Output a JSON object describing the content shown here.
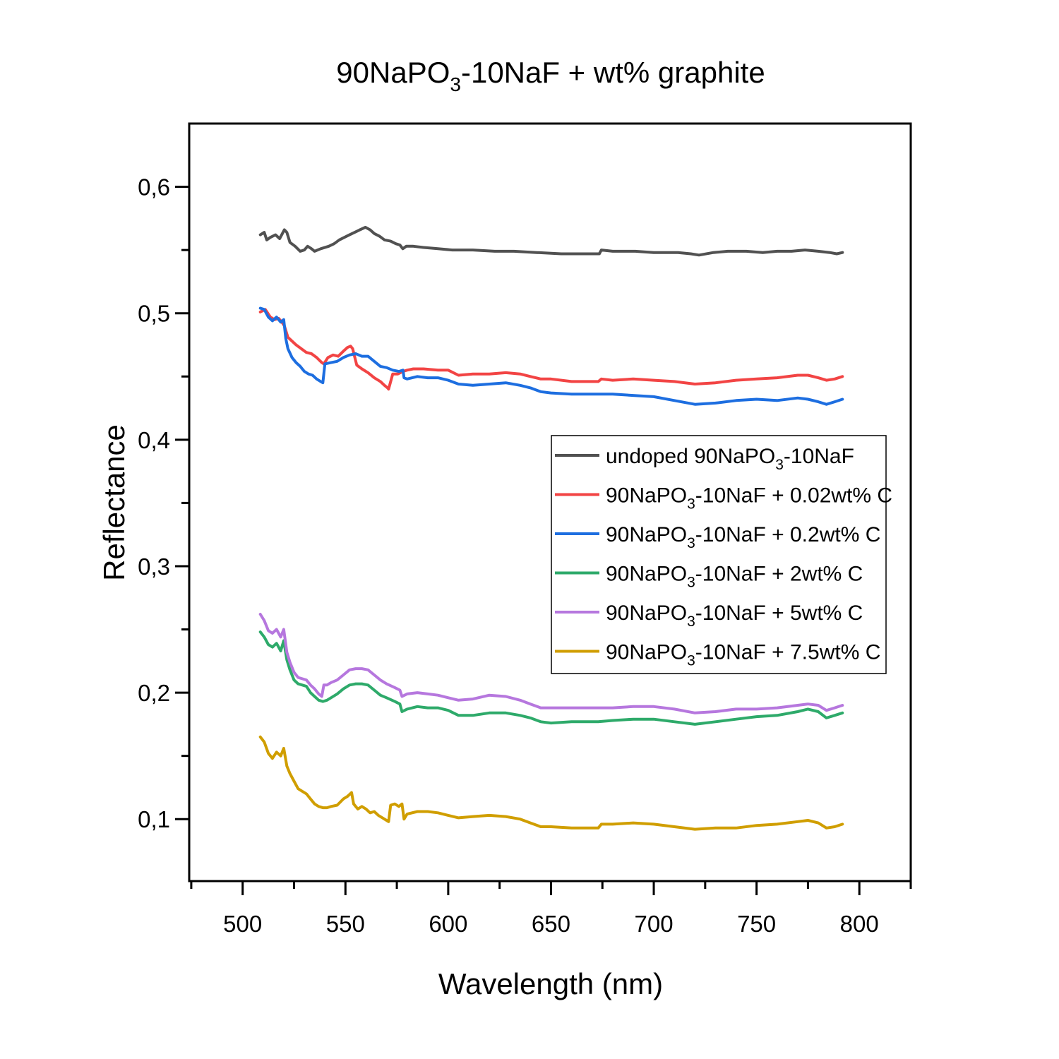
{
  "chart_data": {
    "type": "line",
    "title": {
      "prefix": "90NaPO",
      "subscript": "3",
      "suffix": "-10NaF + wt% graphite"
    },
    "xlabel": "Wavelength (nm)",
    "ylabel": "Reflectance",
    "xlim": [
      474,
      825
    ],
    "ylim": [
      0.051,
      0.65
    ],
    "x_ticks": [
      500,
      550,
      600,
      650,
      700,
      750,
      800
    ],
    "x_tick_labels": [
      "500",
      "550",
      "600",
      "650",
      "700",
      "750",
      "800"
    ],
    "x_minor_ticks": [
      475,
      525,
      575,
      625,
      675,
      725,
      775,
      825
    ],
    "y_ticks": [
      0.1,
      0.2,
      0.3,
      0.4,
      0.5,
      0.6
    ],
    "y_tick_labels": [
      "0,1",
      "0,2",
      "0,3",
      "0,4",
      "0,5",
      "0,6"
    ],
    "y_minor_ticks": [
      0.05,
      0.15,
      0.25,
      0.35,
      0.45,
      0.55
    ],
    "grid": false,
    "legend_position": "center-right",
    "series": [
      {
        "name": "undoped 90NaPO3-10NaF",
        "label": {
          "prefix": "undoped 90NaPO",
          "subscript": "3",
          "suffix": "-10NaF"
        },
        "color": "#515151",
        "x": [
          508.6,
          510.5,
          511.7,
          513.5,
          516,
          518,
          520.3,
          521.5,
          523,
          525.5,
          528,
          530,
          531.6,
          533.5,
          535,
          538,
          541.9,
          544.5,
          547,
          549.5,
          552,
          554.5,
          557,
          559.7,
          562,
          564,
          566.5,
          569,
          572,
          574.5,
          576.5,
          577.9,
          579.6,
          583,
          588,
          595,
          602,
          612,
          622.6,
          632,
          643,
          655,
          667,
          673.5,
          674.5,
          680,
          691,
          700,
          711.8,
          718,
          722,
          729,
          736,
          745,
          753,
          760,
          767,
          773.6,
          780,
          785.6,
          789,
          791.8
        ],
        "y": [
          0.562,
          0.564,
          0.558,
          0.56,
          0.562,
          0.559,
          0.566,
          0.564,
          0.556,
          0.553,
          0.549,
          0.55,
          0.553,
          0.551,
          0.549,
          0.551,
          0.553,
          0.555,
          0.558,
          0.56,
          0.562,
          0.564,
          0.566,
          0.568,
          0.566,
          0.563,
          0.561,
          0.558,
          0.557,
          0.555,
          0.554,
          0.551,
          0.553,
          0.553,
          0.552,
          0.551,
          0.55,
          0.55,
          0.549,
          0.549,
          0.548,
          0.547,
          0.547,
          0.547,
          0.55,
          0.549,
          0.549,
          0.548,
          0.548,
          0.547,
          0.546,
          0.548,
          0.549,
          0.549,
          0.548,
          0.549,
          0.549,
          0.55,
          0.549,
          0.548,
          0.547,
          0.548
        ]
      },
      {
        "name": "90NaPO3-10NaF + 0.02wt% C",
        "label": {
          "prefix": "90NaPO",
          "subscript": "3",
          "suffix": "-10NaF + 0.02wt% C"
        },
        "color": "#f24444",
        "x": [
          508.6,
          511,
          513.5,
          515.5,
          517.5,
          519.5,
          520.3,
          522,
          524,
          526,
          528.5,
          531,
          533.5,
          536,
          538.5,
          539.5,
          541.5,
          544,
          546.5,
          549,
          551,
          552.5,
          553.5,
          555.5,
          558,
          561,
          564,
          567,
          569,
          570.5,
          571,
          573,
          575.5,
          578,
          580,
          583,
          588,
          595,
          600,
          605,
          612,
          620,
          628,
          635,
          640,
          645,
          650,
          660,
          667,
          673,
          674.5,
          680,
          690,
          700,
          710,
          720,
          730,
          740,
          750,
          760,
          770,
          775,
          780,
          784,
          788,
          791.8
        ],
        "y": [
          0.501,
          0.503,
          0.497,
          0.495,
          0.496,
          0.492,
          0.49,
          0.481,
          0.478,
          0.475,
          0.472,
          0.469,
          0.468,
          0.465,
          0.461,
          0.46,
          0.465,
          0.467,
          0.466,
          0.47,
          0.473,
          0.474,
          0.472,
          0.459,
          0.456,
          0.453,
          0.449,
          0.446,
          0.443,
          0.441,
          0.44,
          0.452,
          0.452,
          0.454,
          0.455,
          0.456,
          0.456,
          0.455,
          0.455,
          0.451,
          0.452,
          0.452,
          0.453,
          0.452,
          0.45,
          0.448,
          0.448,
          0.446,
          0.446,
          0.446,
          0.448,
          0.447,
          0.448,
          0.447,
          0.446,
          0.444,
          0.445,
          0.447,
          0.448,
          0.449,
          0.451,
          0.451,
          0.449,
          0.447,
          0.448,
          0.45
        ]
      },
      {
        "name": "90NaPO3-10NaF + 0.2wt% C",
        "label": {
          "prefix": "90NaPO",
          "subscript": "3",
          "suffix": "-10NaF + 0.2wt% C"
        },
        "color": "#1d6ee0",
        "x": [
          508.6,
          510.5,
          512.5,
          514.5,
          516.5,
          518.5,
          520,
          521,
          522,
          524,
          526,
          528,
          530,
          532,
          534,
          536,
          538,
          539,
          540,
          543,
          546,
          549,
          552,
          555,
          558,
          561,
          564,
          567,
          570,
          573,
          576,
          578,
          578.5,
          580,
          585,
          590,
          595,
          600,
          605,
          612,
          620,
          628,
          635,
          640,
          645,
          650,
          660,
          673,
          680,
          690,
          700,
          710,
          720,
          730,
          740,
          750,
          760,
          770,
          775,
          780,
          784,
          788,
          791.8
        ],
        "y": [
          0.504,
          0.503,
          0.497,
          0.494,
          0.497,
          0.493,
          0.495,
          0.48,
          0.472,
          0.465,
          0.461,
          0.458,
          0.454,
          0.452,
          0.451,
          0.448,
          0.446,
          0.445,
          0.46,
          0.461,
          0.462,
          0.465,
          0.467,
          0.468,
          0.466,
          0.466,
          0.462,
          0.458,
          0.457,
          0.455,
          0.454,
          0.455,
          0.449,
          0.448,
          0.45,
          0.449,
          0.449,
          0.447,
          0.444,
          0.443,
          0.444,
          0.445,
          0.443,
          0.441,
          0.438,
          0.437,
          0.436,
          0.436,
          0.436,
          0.435,
          0.434,
          0.431,
          0.428,
          0.429,
          0.431,
          0.432,
          0.431,
          0.433,
          0.432,
          0.43,
          0.428,
          0.43,
          0.432
        ]
      },
      {
        "name": "90NaPO3-10NaF + 2wt% C",
        "label": {
          "prefix": "90NaPO",
          "subscript": "3",
          "suffix": "-10NaF + 2wt% C"
        },
        "color": "#2eaa6a",
        "x": [
          508.6,
          510.5,
          512.5,
          514.5,
          516.5,
          518.5,
          520,
          521.5,
          523,
          525,
          527,
          529,
          531,
          533,
          535,
          537,
          539,
          541,
          543,
          546,
          549,
          552,
          555,
          558,
          561,
          564,
          567,
          570,
          574,
          576.5,
          577.5,
          580,
          585,
          590,
          595,
          600,
          605,
          612,
          620,
          628,
          635,
          640,
          645,
          650,
          660,
          673,
          680,
          690,
          700,
          710,
          720,
          730,
          740,
          750,
          760,
          770,
          775,
          780,
          784,
          788,
          791.8
        ],
        "y": [
          0.248,
          0.244,
          0.238,
          0.236,
          0.239,
          0.233,
          0.241,
          0.226,
          0.218,
          0.21,
          0.207,
          0.206,
          0.205,
          0.2,
          0.197,
          0.194,
          0.193,
          0.194,
          0.196,
          0.199,
          0.203,
          0.206,
          0.207,
          0.207,
          0.206,
          0.202,
          0.198,
          0.196,
          0.193,
          0.191,
          0.185,
          0.187,
          0.189,
          0.188,
          0.188,
          0.186,
          0.182,
          0.182,
          0.184,
          0.184,
          0.182,
          0.18,
          0.177,
          0.176,
          0.177,
          0.177,
          0.178,
          0.179,
          0.179,
          0.177,
          0.175,
          0.177,
          0.179,
          0.181,
          0.182,
          0.185,
          0.187,
          0.185,
          0.18,
          0.182,
          0.184
        ]
      },
      {
        "name": "90NaPO3-10NaF + 5wt% C",
        "label": {
          "prefix": "90NaPO",
          "subscript": "3",
          "suffix": "-10NaF + 5wt% C"
        },
        "color": "#b677de",
        "x": [
          508.6,
          510.5,
          512.5,
          514.5,
          516.5,
          518.5,
          520,
          521.5,
          523,
          525,
          527,
          529,
          531,
          533,
          535,
          537,
          538.5,
          539.5,
          541,
          543,
          546,
          549,
          552,
          555,
          558,
          561,
          564,
          567,
          570,
          574,
          576.5,
          577.5,
          580,
          585,
          590,
          595,
          600,
          605,
          612,
          620,
          628,
          635,
          640,
          645,
          650,
          660,
          673,
          680,
          690,
          700,
          710,
          720,
          730,
          740,
          750,
          760,
          770,
          775,
          780,
          784,
          788,
          791.8
        ],
        "y": [
          0.262,
          0.257,
          0.249,
          0.247,
          0.25,
          0.244,
          0.25,
          0.232,
          0.224,
          0.216,
          0.212,
          0.211,
          0.21,
          0.206,
          0.203,
          0.199,
          0.197,
          0.206,
          0.206,
          0.208,
          0.21,
          0.214,
          0.218,
          0.219,
          0.219,
          0.218,
          0.214,
          0.21,
          0.207,
          0.204,
          0.202,
          0.197,
          0.199,
          0.2,
          0.199,
          0.198,
          0.196,
          0.194,
          0.195,
          0.198,
          0.197,
          0.194,
          0.191,
          0.188,
          0.188,
          0.188,
          0.188,
          0.188,
          0.189,
          0.189,
          0.187,
          0.184,
          0.185,
          0.187,
          0.187,
          0.188,
          0.19,
          0.191,
          0.19,
          0.186,
          0.188,
          0.19
        ]
      },
      {
        "name": "90NaPO3-10NaF + 7.5wt% C",
        "label": {
          "prefix": "90NaPO",
          "subscript": "3",
          "suffix": "-10NaF + 7.5wt% C"
        },
        "color": "#d09e00",
        "x": [
          508.6,
          510.5,
          512.5,
          514.5,
          516.5,
          518.5,
          520,
          521.5,
          523,
          525,
          527,
          529,
          531,
          533,
          535,
          537,
          539,
          541,
          543,
          546,
          549,
          551,
          553,
          554,
          556,
          558,
          560,
          562,
          564,
          566,
          568,
          570,
          571,
          572,
          574,
          576,
          577.5,
          578.5,
          580,
          585,
          590,
          595,
          600,
          605,
          612,
          620,
          628,
          635,
          640,
          645,
          650,
          660,
          673,
          674.5,
          680,
          690,
          700,
          710,
          720,
          730,
          740,
          750,
          760,
          770,
          775,
          780,
          784,
          788,
          791.8
        ],
        "y": [
          0.165,
          0.161,
          0.152,
          0.148,
          0.153,
          0.15,
          0.156,
          0.142,
          0.136,
          0.13,
          0.124,
          0.122,
          0.12,
          0.116,
          0.112,
          0.11,
          0.109,
          0.109,
          0.11,
          0.111,
          0.116,
          0.118,
          0.121,
          0.112,
          0.108,
          0.11,
          0.108,
          0.105,
          0.106,
          0.103,
          0.101,
          0.099,
          0.098,
          0.111,
          0.112,
          0.11,
          0.112,
          0.1,
          0.104,
          0.106,
          0.106,
          0.105,
          0.103,
          0.101,
          0.102,
          0.103,
          0.102,
          0.1,
          0.097,
          0.094,
          0.094,
          0.093,
          0.093,
          0.096,
          0.096,
          0.097,
          0.096,
          0.094,
          0.092,
          0.093,
          0.093,
          0.095,
          0.096,
          0.098,
          0.099,
          0.097,
          0.093,
          0.094,
          0.096
        ]
      }
    ]
  }
}
